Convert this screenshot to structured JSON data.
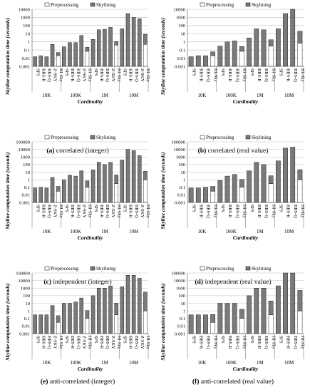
{
  "legend_labels": [
    "Preprocessing",
    "Skylining"
  ],
  "colors": {
    "preprocessing": "#ffffff",
    "skylining": "#7a7a7a",
    "axis": "#7f7f7f",
    "grid": "#bfbfbf",
    "stroke": "#000000"
  },
  "chart_data": [
    {
      "type": "bar",
      "stacked": true,
      "log_scale": true,
      "caption_letter": "(a)",
      "caption_text": "correlated (integer)",
      "ylabel": "Skyline computation time (seconds)",
      "xlabel": "Cardinality",
      "ylim": [
        0.001,
        10000
      ],
      "yticks": [
        "0.001",
        "0.01",
        "0.1",
        "1",
        "10",
        "100",
        "1000",
        "10000"
      ],
      "groups": [
        "10K",
        "100K",
        "1M",
        "10M"
      ],
      "categories": [
        "SFS",
        "BBS-R",
        "BBS-Q",
        "Z-SKY",
        "HI-Sky",
        "SFS",
        "BBS-R",
        "BBS-Q",
        "Z-SKY",
        "HI-Sky",
        "SFS",
        "BBS-R",
        "BBS-Q",
        "Z-SKY",
        "HI-Sky",
        "SFS",
        "BBS-R",
        "BBS-Q",
        "Z-SKY",
        "HI-Sky"
      ],
      "series": [
        {
          "name": "Preprocessing",
          "values": [
            0,
            0,
            0,
            0,
            0.02,
            0,
            0,
            0,
            0,
            0.07,
            0,
            0,
            0,
            0,
            0.4,
            0,
            0,
            0,
            0,
            0.5
          ]
        },
        {
          "name": "Skylining",
          "values": [
            0.015,
            0.02,
            0.015,
            0.5,
            0.03,
            0.25,
            0.8,
            0.8,
            6,
            0.15,
            2,
            30,
            35,
            60,
            0.7,
            40,
            3000,
            1000,
            700,
            8
          ]
        }
      ]
    },
    {
      "type": "bar",
      "stacked": true,
      "log_scale": true,
      "caption_letter": "(b)",
      "caption_text": "correlated (real value)",
      "ylabel": "Skyline computation time (seconds)",
      "xlabel": "Cardinality",
      "ylim": [
        0.001,
        10000
      ],
      "yticks": [
        "0.001",
        "0.01",
        "0.1",
        "1",
        "10",
        "100",
        "1000",
        "10000"
      ],
      "groups": [
        "10K",
        "100K",
        "1M",
        "10M"
      ],
      "categories": [
        "SFS",
        "BBS-R",
        "BBS-Q",
        "HI-Sky",
        "SFS",
        "BBS-R",
        "BBS-Q",
        "HI-Sky",
        "SFS",
        "BBS-R",
        "BBS-Q",
        "HI-Sky",
        "SFS",
        "BBS-R",
        "BBS-Q",
        "HI-Sky"
      ],
      "series": [
        {
          "name": "Preprocessing",
          "values": [
            0,
            0,
            0,
            0.02,
            0,
            0,
            0,
            0.07,
            0,
            0,
            0,
            0.3,
            0,
            0,
            0,
            0.7
          ]
        },
        {
          "name": "Skylining",
          "values": [
            0.015,
            0.02,
            0.02,
            0.04,
            0.3,
            1,
            1.3,
            0.2,
            3,
            40,
            30,
            1.5,
            40,
            3000,
            10000,
            20
          ]
        }
      ]
    },
    {
      "type": "bar",
      "stacked": true,
      "log_scale": true,
      "caption_letter": "(c)",
      "caption_text": "independent (integer)",
      "ylabel": "Skyline computation time (seconds)",
      "xlabel": "Cardinality",
      "ylim": [
        0.001,
        100000
      ],
      "yticks": [
        "0.001",
        "0.01",
        "0.1",
        "1",
        "10",
        "100",
        "1000",
        "10000",
        "100000"
      ],
      "groups": [
        "10K",
        "100K",
        "1M",
        "10M"
      ],
      "categories": [
        "SFS",
        "BBS-R",
        "BBS-Q",
        "Z-SKY",
        "HI-Sky",
        "SFS",
        "BBS-R",
        "BBS-Q",
        "Z-SKY",
        "HI-Sky",
        "SFS",
        "BBS-R",
        "BBS-Q",
        "Z-SKY",
        "HI-Sky",
        "SFS",
        "BBS-R",
        "BBS-Q",
        "Z-SKY",
        "HI-Sky"
      ],
      "series": [
        {
          "name": "Preprocessing",
          "values": [
            0,
            0,
            0,
            0,
            0.03,
            0,
            0,
            0,
            0,
            0.1,
            0,
            0,
            0,
            0,
            0.3,
            0,
            0,
            0,
            0,
            1
          ]
        },
        {
          "name": "Skylining",
          "values": [
            0.08,
            0.1,
            0.08,
            2,
            0.1,
            1,
            4,
            3,
            15,
            0.6,
            20,
            200,
            100,
            200,
            4,
            400,
            10000,
            7000,
            1500,
            12
          ]
        }
      ]
    },
    {
      "type": "bar",
      "stacked": true,
      "log_scale": true,
      "caption_letter": "(d)",
      "caption_text": "independent (real value)",
      "ylabel": "Skyline computation time (seconds)",
      "xlabel": "Cardinality",
      "ylim": [
        0.001,
        100000
      ],
      "yticks": [
        "0.001",
        "0.01",
        "0.1",
        "1",
        "10",
        "100",
        "1000",
        "10000",
        "100000"
      ],
      "groups": [
        "10K",
        "100K",
        "1M",
        "10M"
      ],
      "categories": [
        "SFS",
        "BBS-R",
        "BBS-Q",
        "HI-Sky",
        "SFS",
        "BBS-R",
        "BBS-Q",
        "HI-Sky",
        "SFS",
        "BBS-R",
        "BBS-Q",
        "HI-Sky",
        "SFS",
        "BBS-R",
        "BBS-Q",
        "HI-Sky"
      ],
      "series": [
        {
          "name": "Preprocessing",
          "values": [
            0,
            0,
            0,
            0.03,
            0,
            0,
            0,
            0.1,
            0,
            0,
            0,
            0.3,
            0,
            0,
            0,
            1
          ]
        },
        {
          "name": "Skylining",
          "values": [
            0.08,
            0.08,
            0.1,
            0.1,
            0.8,
            3,
            5,
            1,
            15,
            200,
            100,
            3,
            300,
            15000,
            20000,
            20
          ]
        }
      ]
    },
    {
      "type": "bar",
      "stacked": true,
      "log_scale": true,
      "caption_letter": "(e)",
      "caption_text": "anti-correlated (integer)",
      "ylabel": "Skyline computation time (seconds)",
      "xlabel": "Cardinality",
      "ylim": [
        0.001,
        100000
      ],
      "yticks": [
        "0.001",
        "0.01",
        "0.1",
        "1",
        "10",
        "100",
        "1000",
        "10000",
        "100000"
      ],
      "groups": [
        "10K",
        "100K",
        "1M",
        "10M"
      ],
      "categories": [
        "SFS",
        "BBS-R",
        "BBS-Q",
        "Z-SKY",
        "HI-Sky",
        "SFS",
        "BBS-R",
        "BBS-Q",
        "Z-SKY",
        "HI-Sky",
        "SFS",
        "BBS-R",
        "BBS-Q",
        "Z-SKY",
        "HI-Sky",
        "SFS",
        "BBS-R",
        "BBS-Q",
        "Z-SKY",
        "HI-Sky"
      ],
      "series": [
        {
          "name": "Preprocessing",
          "values": [
            0,
            0,
            0,
            0,
            0.03,
            0,
            0,
            0,
            0,
            0.1,
            0,
            0,
            0,
            0,
            0.3,
            0,
            0,
            0,
            0,
            1
          ]
        },
        {
          "name": "Skylining",
          "values": [
            0.3,
            0.3,
            0.3,
            5,
            0.2,
            10,
            10,
            15,
            50,
            1,
            100,
            1000,
            1000,
            2000,
            10,
            1500,
            50000,
            50000,
            20000,
            300
          ]
        }
      ]
    },
    {
      "type": "bar",
      "stacked": true,
      "log_scale": true,
      "caption_letter": "(f)",
      "caption_text": "anti-correlated (real value)",
      "ylabel": "Skyline computation time (seconds)",
      "xlabel": "Cardinality",
      "ylim": [
        0.001,
        100000
      ],
      "yticks": [
        "0.001",
        "0.01",
        "0.1",
        "1",
        "10",
        "100",
        "1000",
        "10000",
        "100000"
      ],
      "groups": [
        "10K",
        "100K",
        "1M",
        "10M"
      ],
      "categories": [
        "SFS",
        "BBS-R",
        "BBS-Q",
        "HI-Sky",
        "SFS",
        "BBS-R",
        "BBS-Q",
        "HI-Sky",
        "SFS",
        "BBS-R",
        "BBS-Q",
        "HI-Sky",
        "SFS",
        "BBS-R",
        "BBS-Q",
        "HI-Sky"
      ],
      "series": [
        {
          "name": "Preprocessing",
          "values": [
            0,
            0,
            0,
            0.03,
            0,
            0,
            0,
            0.1,
            0,
            0,
            0,
            0.3,
            0,
            0,
            0,
            1
          ]
        },
        {
          "name": "Skylining",
          "values": [
            0.3,
            0.3,
            0.3,
            0.3,
            10,
            10,
            10,
            1.5,
            100,
            1000,
            1000,
            20,
            2000,
            100000,
            100000,
            500
          ]
        }
      ]
    }
  ]
}
